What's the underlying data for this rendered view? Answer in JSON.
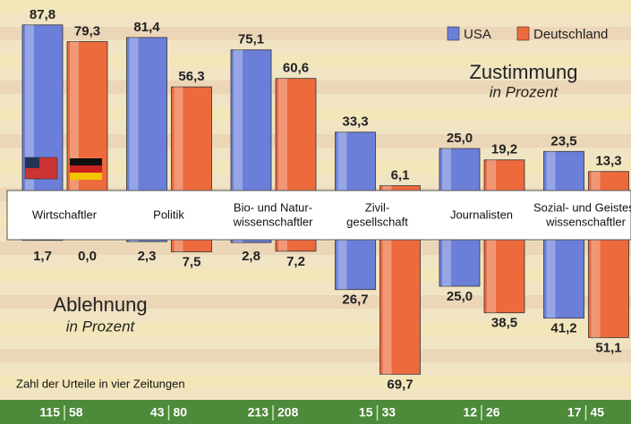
{
  "chart_data": {
    "type": "bar",
    "categories": [
      [
        "Wirtschaftler"
      ],
      [
        "Politik"
      ],
      [
        "Bio- und Natur-",
        "wissenschaftler"
      ],
      [
        "Zivil-",
        "gesellschaft"
      ],
      [
        "Journalisten"
      ],
      [
        "Sozial- und Geistes-",
        "wissenschaftler"
      ]
    ],
    "approval": {
      "title": "Zustimmung",
      "subtitle": "in Prozent",
      "series": [
        {
          "name": "USA",
          "color": "#6b7fd9",
          "values": [
            87.8,
            81.4,
            75.1,
            33.3,
            25.0,
            23.5
          ],
          "value_labels": [
            "87,8",
            "81,4",
            "75,1",
            "33,3",
            "25,0",
            "23,5"
          ]
        },
        {
          "name": "Deutschland",
          "color": "#ec6a3c",
          "values": [
            79.3,
            56.3,
            60.6,
            6.1,
            19.2,
            13.3
          ],
          "value_labels": [
            "79,3",
            "56,3",
            "60,6",
            "6,1",
            "19,2",
            "13,3"
          ]
        }
      ]
    },
    "rejection": {
      "title": "Ablehnung",
      "subtitle": "in Prozent",
      "series": [
        {
          "color": "#6b7fd9",
          "values": [
            1.7,
            2.3,
            2.8,
            26.7,
            25.0,
            41.2
          ],
          "value_labels": [
            "1,7",
            "2,3",
            "2,8",
            "26,7",
            "25,0",
            "41,2"
          ]
        },
        {
          "color": "#ec6a3c",
          "values": [
            0.0,
            7.5,
            7.2,
            69.7,
            38.5,
            51.1
          ],
          "value_labels": [
            "0,0",
            "7,5",
            "7,2",
            "69,7",
            "38,5",
            "51,1"
          ]
        }
      ]
    },
    "counts": {
      "title": "Zahl der Urteile in vier Zeitungen",
      "series": [
        [
          115,
          43,
          213,
          15,
          12,
          17
        ],
        [
          58,
          80,
          208,
          33,
          26,
          45
        ]
      ]
    }
  }
}
